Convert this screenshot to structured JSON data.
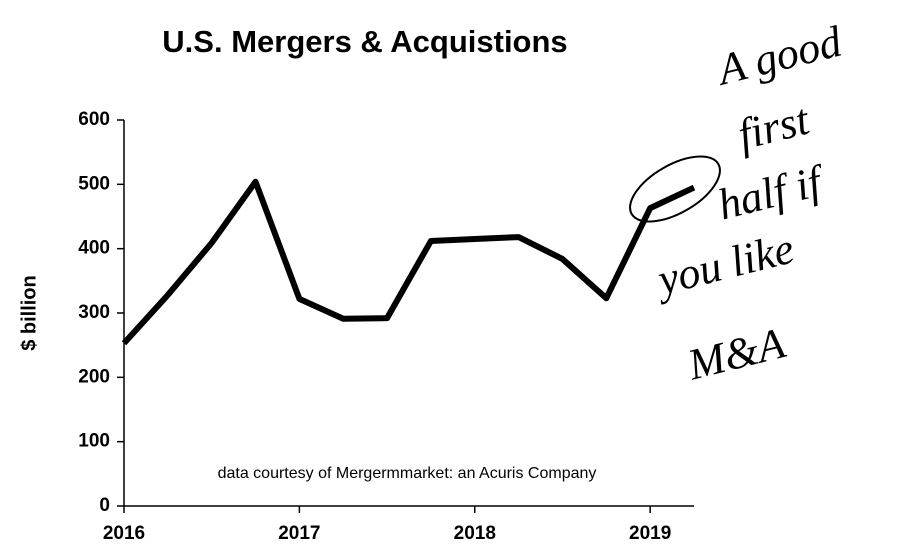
{
  "chart_data": {
    "type": "line",
    "title": "U.S. Mergers & Acquistions",
    "y_label": "$ billion",
    "source_note": "data courtesy of Mergermmarket: an Acuris Company",
    "annotation": [
      "A good",
      "first",
      "half if",
      "you like",
      "M&A"
    ],
    "x": [
      2016,
      2016.25,
      2016.5,
      2016.75,
      2017,
      2017.25,
      2017.5,
      2017.75,
      2018,
      2018.25,
      2018.5,
      2018.75,
      2019,
      2019.25
    ],
    "values": [
      253,
      328,
      409,
      504,
      322,
      291,
      292,
      412,
      415,
      418,
      384,
      323,
      463,
      495
    ],
    "color": "#000000",
    "xlim": [
      2016,
      2019.25
    ],
    "xticks": [
      2016,
      2017,
      2018,
      2019
    ],
    "ylim": [
      0,
      600
    ],
    "yticks": [
      0,
      100,
      200,
      300,
      400,
      500,
      600
    ],
    "grid": false
  }
}
